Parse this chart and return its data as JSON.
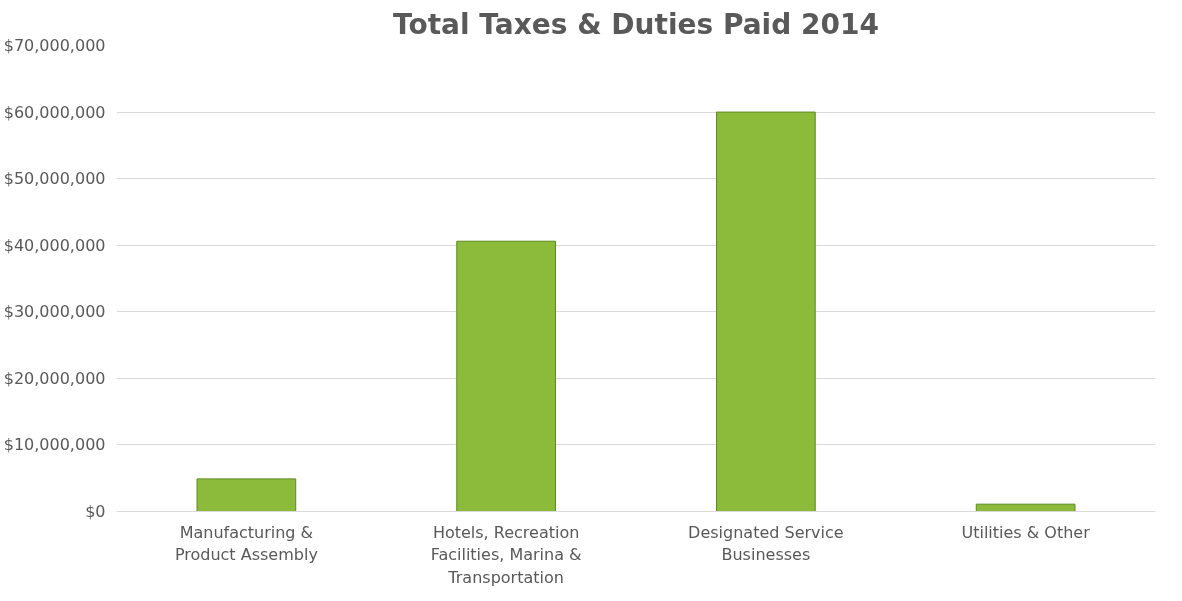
{
  "chart_data": {
    "type": "bar",
    "title": "Total Taxes & Duties Paid 2014",
    "categories": [
      "Manufacturing & Product Assembly",
      "Hotels, Recreation Facilities, Marina & Transportation",
      "Designated Service Businesses",
      "Utilities & Other"
    ],
    "values": [
      4900000,
      40600000,
      60000000,
      1100000
    ],
    "color": "#8cbb3c",
    "ylim": [
      0,
      70000000
    ],
    "yticks": [
      {
        "value": 0,
        "label": "$0"
      },
      {
        "value": 10000000,
        "label": "$10,000,000"
      },
      {
        "value": 20000000,
        "label": "$20,000,000"
      },
      {
        "value": 30000000,
        "label": "$30,000,000"
      },
      {
        "value": 40000000,
        "label": "$40,000,000"
      },
      {
        "value": 50000000,
        "label": "$50,000,000"
      },
      {
        "value": 60000000,
        "label": "$60,000,000"
      },
      {
        "value": 70000000,
        "label": "$70,000,000"
      }
    ],
    "grid": "y"
  }
}
